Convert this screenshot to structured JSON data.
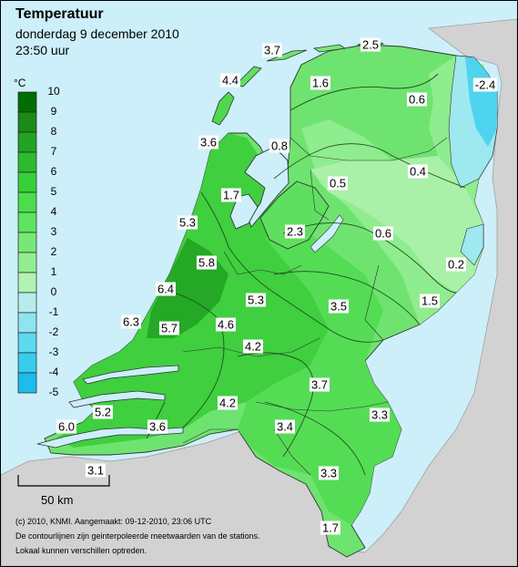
{
  "header": {
    "title": "Temperatuur",
    "date": "donderdag 9 december 2010",
    "time": "23:50 uur"
  },
  "legend": {
    "unit": "°C",
    "ticks": [
      "10",
      "9",
      "8",
      "7",
      "6",
      "5",
      "4",
      "3",
      "2",
      "1",
      "0",
      "-1",
      "-2",
      "-3",
      "-4",
      "-5"
    ],
    "colors": [
      "#006e00",
      "#1a8a1a",
      "#22a322",
      "#2dbb2d",
      "#38d038",
      "#4cdc4c",
      "#5fe45f",
      "#77e877",
      "#93ee93",
      "#b2f2b2",
      "#b7ecef",
      "#8ee4ef",
      "#5ed9ef",
      "#38ccef",
      "#1cbcef"
    ]
  },
  "labels": [
    {
      "id": "t1",
      "text": "3.7"
    },
    {
      "id": "t2",
      "text": "2.5"
    },
    {
      "id": "t3",
      "text": "4.4"
    },
    {
      "id": "t4",
      "text": "-2.4"
    },
    {
      "id": "t5",
      "text": "1.6"
    },
    {
      "id": "t6",
      "text": "0.6"
    },
    {
      "id": "t7",
      "text": "3.6"
    },
    {
      "id": "t8",
      "text": "0.8"
    },
    {
      "id": "t9",
      "text": "0.4"
    },
    {
      "id": "t10",
      "text": "1.7"
    },
    {
      "id": "t11",
      "text": "0.5"
    },
    {
      "id": "t12",
      "text": "5.3"
    },
    {
      "id": "t13",
      "text": "2.3"
    },
    {
      "id": "t14",
      "text": "0.6"
    },
    {
      "id": "t15",
      "text": "5.8"
    },
    {
      "id": "t16",
      "text": "0.2"
    },
    {
      "id": "t17",
      "text": "6.4"
    },
    {
      "id": "t18",
      "text": "5.3"
    },
    {
      "id": "t19",
      "text": "3.5"
    },
    {
      "id": "t20",
      "text": "1.5"
    },
    {
      "id": "t21",
      "text": "6.3"
    },
    {
      "id": "t22",
      "text": "5.7"
    },
    {
      "id": "t23",
      "text": "4.6"
    },
    {
      "id": "t24",
      "text": "4.2"
    },
    {
      "id": "t25",
      "text": "3.7"
    },
    {
      "id": "t26",
      "text": "5.2"
    },
    {
      "id": "t27",
      "text": "4.2"
    },
    {
      "id": "t28",
      "text": "3.3"
    },
    {
      "id": "t29",
      "text": "6.0"
    },
    {
      "id": "t30",
      "text": "3.6"
    },
    {
      "id": "t31",
      "text": "3.4"
    },
    {
      "id": "t32",
      "text": "3.1"
    },
    {
      "id": "t33",
      "text": "3.3"
    },
    {
      "id": "t34",
      "text": "1.7"
    }
  ],
  "scale": {
    "label": "50 km"
  },
  "footer": {
    "line1": "(c) 2010, KNMI. Aangemaakt: 09-12-2010, 23:06 UTC",
    "line2": "De contourlijnen zijn geinterpoleerde meetwaarden van de stations.",
    "line3": "Lokaal kunnen verschillen optreden."
  }
}
